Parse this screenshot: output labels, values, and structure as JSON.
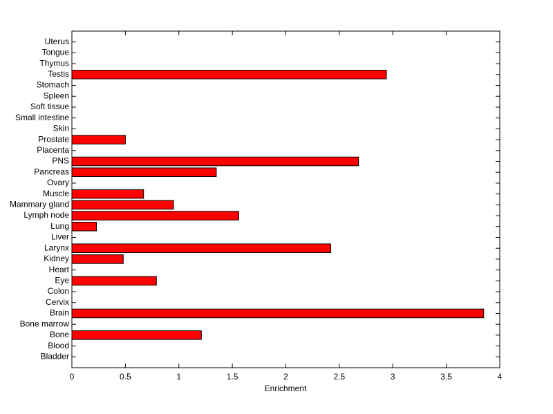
{
  "chart_data": {
    "type": "barh",
    "xlabel": "Enrichment",
    "categories": [
      "Bladder",
      "Blood",
      "Bone",
      "Bone marrow",
      "Brain",
      "Cervix",
      "Colon",
      "Eye",
      "Heart",
      "Kidney",
      "Larynx",
      "Liver",
      "Lung",
      "Lymph node",
      "Mammary gland",
      "Muscle",
      "Ovary",
      "Pancreas",
      "PNS",
      "Placenta",
      "Prostate",
      "Skin",
      "Small intestine",
      "Soft tissue",
      "Spleen",
      "Stomach",
      "Testis",
      "Thymus",
      "Tongue",
      "Uterus"
    ],
    "values": [
      0,
      0,
      1.21,
      0,
      3.85,
      0,
      0,
      0.79,
      0,
      0.48,
      2.42,
      0,
      0.23,
      1.56,
      0.95,
      0.67,
      0,
      1.35,
      2.68,
      0,
      0.5,
      0,
      0,
      0,
      0,
      0,
      2.94,
      0,
      0,
      0
    ],
    "color": "#ff0000",
    "xlim": [
      0,
      4
    ],
    "xticks": [
      0,
      0.5,
      1,
      1.5,
      2,
      2.5,
      3,
      3.5,
      4
    ]
  }
}
